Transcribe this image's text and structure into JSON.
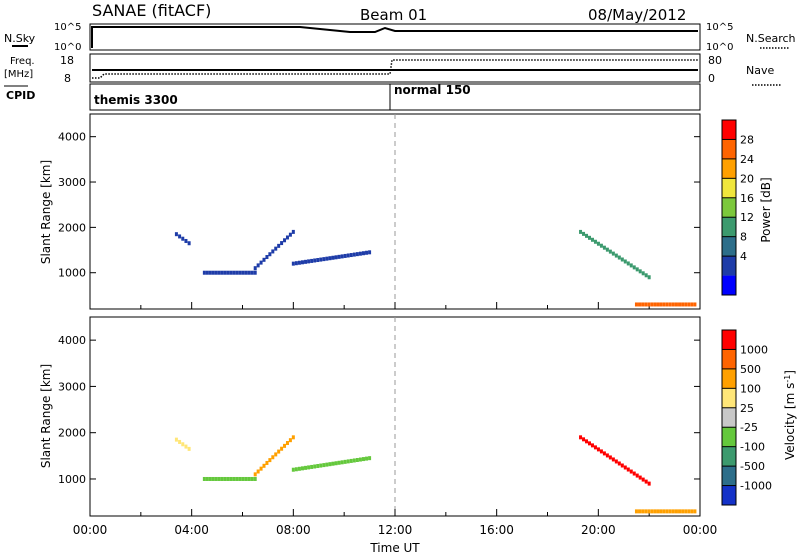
{
  "header": {
    "station": "SANAE (fitACF)",
    "beam": "Beam 01",
    "date": "08/May/2012"
  },
  "panels": {
    "nsky_label": "N.Sky",
    "nsearch_label": "N.Search",
    "nsky_ticks": [
      "10^5",
      "10^0"
    ],
    "nsearch_ticks": [
      "10^5",
      "10^0"
    ],
    "freq_label": "Freq.",
    "freq_unit": "[MHz]",
    "freq_ticks": [
      "18",
      "8"
    ],
    "nave_label": "Nave",
    "nave_ticks": [
      "80",
      "0"
    ],
    "cpid_label": "CPID",
    "cpid_segments": [
      "themis 3300",
      "normal 150"
    ]
  },
  "chart_data": [
    {
      "type": "heatmap",
      "name": "power",
      "ylabel": "Slant Range [km]",
      "yticks": [
        "4000",
        "3000",
        "2000",
        "1000"
      ],
      "ytick_values": [
        4000,
        3000,
        2000,
        1000
      ],
      "ylim": [
        200,
        4500
      ],
      "xlim": [
        0,
        24
      ],
      "colorbar": {
        "label": "Power [dB]",
        "tick_labels": [
          "28",
          "24",
          "20",
          "16",
          "12",
          "8",
          "4"
        ],
        "colors": [
          "#0000ff",
          "#1e3ca8",
          "#2d6e8a",
          "#3c9a6e",
          "#7cc83c",
          "#f0e63c",
          "#ffa000",
          "#ff6400",
          "#ff0000"
        ]
      },
      "features": [
        {
          "x": [
            3.4,
            3.9
          ],
          "y": [
            1850,
            1650
          ],
          "level": 1
        },
        {
          "x": [
            4.5,
            6.5
          ],
          "y": [
            1000,
            1000
          ],
          "level": 1
        },
        {
          "x": [
            6.5,
            8.0
          ],
          "y": [
            1100,
            1900
          ],
          "level": 1
        },
        {
          "x": [
            8.0,
            11.0
          ],
          "y": [
            1200,
            1450
          ],
          "level": 1
        },
        {
          "x": [
            19.3,
            22.0
          ],
          "y": [
            1900,
            900
          ],
          "level": 3
        },
        {
          "x": [
            21.5,
            23.8
          ],
          "y": [
            300,
            300
          ],
          "level": 7
        }
      ]
    },
    {
      "type": "heatmap",
      "name": "velocity",
      "ylabel": "Slant Range [km]",
      "xlabel": "Time UT",
      "xticks": [
        "00:00",
        "04:00",
        "08:00",
        "12:00",
        "16:00",
        "20:00",
        "00:00"
      ],
      "xtick_values": [
        0,
        4,
        8,
        12,
        16,
        20,
        24
      ],
      "yticks": [
        "4000",
        "3000",
        "2000",
        "1000"
      ],
      "ytick_values": [
        4000,
        3000,
        2000,
        1000
      ],
      "ylim": [
        200,
        4500
      ],
      "xlim": [
        0,
        24
      ],
      "colorbar": {
        "label": "Velocity [m s",
        "label_sup": "-1",
        "label_end": "]",
        "tick_labels": [
          "1000",
          "500",
          "100",
          "25",
          "-25",
          "-100",
          "-500",
          "-1000"
        ],
        "colors": [
          "#1432c8",
          "#2d6e8a",
          "#3c9a6e",
          "#64c83c",
          "#c8c8c8",
          "#ffe678",
          "#ffa000",
          "#ff6400",
          "#ff0000"
        ]
      },
      "features": [
        {
          "x": [
            3.4,
            3.9
          ],
          "y": [
            1850,
            1650
          ],
          "level": 5
        },
        {
          "x": [
            4.5,
            6.5
          ],
          "y": [
            1000,
            1000
          ],
          "level": 3
        },
        {
          "x": [
            6.5,
            8.0
          ],
          "y": [
            1100,
            1900
          ],
          "level": 6
        },
        {
          "x": [
            8.0,
            11.0
          ],
          "y": [
            1200,
            1450
          ],
          "level": 3
        },
        {
          "x": [
            19.3,
            22.0
          ],
          "y": [
            1900,
            900
          ],
          "level": 8
        },
        {
          "x": [
            21.5,
            23.8
          ],
          "y": [
            300,
            300
          ],
          "level": 6
        }
      ]
    }
  ]
}
